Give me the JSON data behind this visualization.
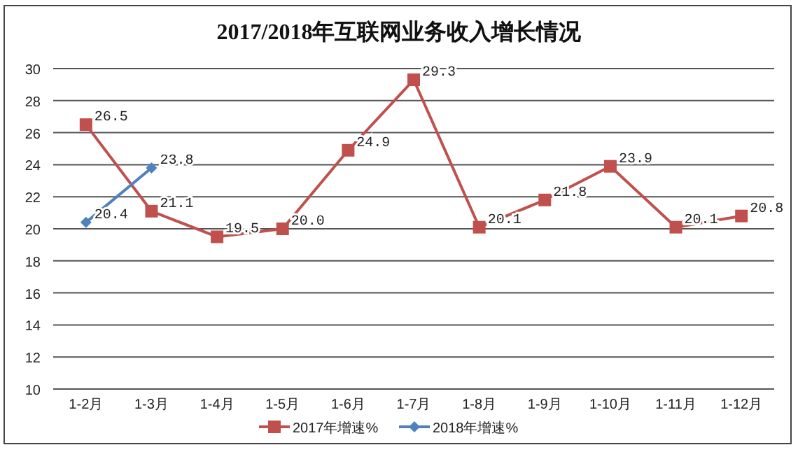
{
  "chart_data": {
    "type": "line",
    "title": "2017/2018年互联网业务收入增长情况",
    "categories": [
      "1-2月",
      "1-3月",
      "1-4月",
      "1-5月",
      "1-6月",
      "1-7月",
      "1-8月",
      "1-9月",
      "1-10月",
      "1-11月",
      "1-12月"
    ],
    "series": [
      {
        "name": "2017年增速%",
        "color": "#c0504d",
        "marker": "square",
        "values": [
          26.5,
          21.1,
          19.5,
          20.0,
          24.9,
          29.3,
          20.1,
          21.8,
          23.9,
          20.1,
          20.8
        ],
        "value_labels": [
          "26.5",
          "21.1",
          "19.5",
          "20.0",
          "24.9",
          "29.3",
          "20.1",
          "21.8",
          "23.9",
          "20.1",
          "20.8"
        ]
      },
      {
        "name": "2018年增速%",
        "color": "#4f81bd",
        "marker": "diamond",
        "values": [
          20.4,
          23.8,
          null,
          null,
          null,
          null,
          null,
          null,
          null,
          null,
          null
        ],
        "value_labels": [
          "20.4",
          "23.8",
          null,
          null,
          null,
          null,
          null,
          null,
          null,
          null,
          null
        ]
      }
    ],
    "ylim": [
      10,
      30
    ],
    "yticks": [
      10,
      12,
      14,
      16,
      18,
      20,
      22,
      24,
      26,
      28,
      30
    ],
    "grid": "y",
    "legend": "bottom",
    "line_style": "solid"
  }
}
